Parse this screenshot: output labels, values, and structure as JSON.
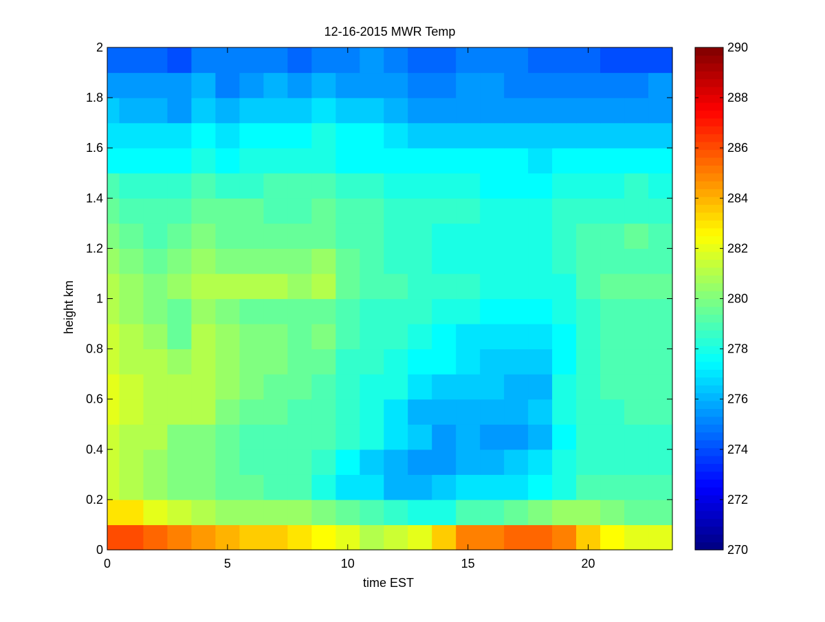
{
  "chart_data": {
    "type": "heatmap",
    "title": "12-16-2015 MWR Temp",
    "xlabel": "time EST",
    "ylabel": "height km",
    "xlim": [
      0,
      23.5
    ],
    "ylim": [
      0,
      2
    ],
    "x_ticks": [
      0,
      5,
      10,
      15,
      20
    ],
    "y_ticks": [
      0,
      0.2,
      0.4,
      0.6,
      0.8,
      1,
      1.2,
      1.4,
      1.6,
      1.8,
      2
    ],
    "colorbar": {
      "min": 270,
      "max": 290,
      "ticks": [
        270,
        272,
        274,
        276,
        278,
        280,
        282,
        284,
        286,
        288,
        290
      ],
      "colormap": "jet"
    },
    "x": [
      0.5,
      1.5,
      2.5,
      3.5,
      4.5,
      5.5,
      6.5,
      7.5,
      8.5,
      9.5,
      10.5,
      11.5,
      12.5,
      13.5,
      14.5,
      15.5,
      16.5,
      17.5,
      18.5,
      19.5,
      20.5,
      21.5,
      22.5,
      23.5
    ],
    "y": [
      0,
      0.1,
      0.2,
      0.3,
      0.4,
      0.5,
      0.6,
      0.7,
      0.8,
      0.9,
      1.0,
      1.1,
      1.2,
      1.3,
      1.4,
      1.5,
      1.6,
      1.7,
      1.8,
      1.9,
      2.0
    ],
    "z": [
      [
        286,
        286,
        285.5,
        285,
        284.5,
        284,
        283.5,
        283.5,
        283,
        282.5,
        282,
        281,
        281.5,
        282,
        283.5,
        285,
        285,
        285.5,
        285.5,
        285,
        283.5,
        282.5,
        282,
        282
      ],
      [
        283,
        283,
        282,
        281.5,
        281,
        280.5,
        280.5,
        280.5,
        280.5,
        280,
        279.5,
        279,
        278.5,
        278,
        278,
        279,
        279,
        279.5,
        280,
        280.5,
        280.5,
        280,
        279.5,
        279.5
      ],
      [
        281.5,
        281,
        280.5,
        280,
        280,
        279.5,
        279.5,
        279,
        279,
        278,
        277,
        277,
        276,
        276,
        276.5,
        277,
        277,
        277,
        277.5,
        278,
        279,
        279,
        279,
        279
      ],
      [
        281.5,
        281,
        280.5,
        280,
        280,
        279.5,
        279,
        279,
        279,
        278.5,
        277.5,
        276.5,
        276,
        275.5,
        275.5,
        276,
        276,
        276.5,
        277,
        278,
        278.5,
        278.5,
        278.5,
        278.5
      ],
      [
        281.5,
        281,
        281,
        280,
        280,
        279.5,
        279,
        279,
        279,
        279,
        278.5,
        278,
        277,
        276.5,
        275.5,
        276,
        275.5,
        275.5,
        276,
        277.5,
        278.5,
        278.5,
        278.5,
        278.5
      ],
      [
        282,
        281.5,
        281,
        281,
        281,
        280,
        279.5,
        279.5,
        279,
        279,
        278.5,
        278,
        277,
        276,
        276,
        276,
        276,
        276,
        276.5,
        278,
        278.5,
        278.5,
        279,
        279
      ],
      [
        282,
        281.5,
        281,
        281,
        281,
        280.5,
        280,
        279.5,
        279.5,
        279,
        278.5,
        278,
        278,
        277,
        276.5,
        276.5,
        276.5,
        276,
        276,
        278,
        278.5,
        279,
        279,
        279
      ],
      [
        281.5,
        281,
        281,
        280.5,
        281,
        280.5,
        280,
        280,
        279.5,
        279.5,
        278.5,
        278.5,
        278,
        277.5,
        277.5,
        277,
        276.5,
        276.5,
        276.5,
        277.5,
        278.5,
        279,
        279,
        279
      ],
      [
        281.5,
        281,
        280.5,
        279.5,
        281,
        280.5,
        280,
        280,
        279.5,
        280,
        279,
        278.5,
        278.5,
        278,
        277.5,
        277,
        277,
        277,
        277,
        277.5,
        278.5,
        279,
        279,
        279
      ],
      [
        281,
        280.5,
        280,
        279.5,
        280.5,
        280,
        279.5,
        279.5,
        279.5,
        279.5,
        279,
        278.5,
        278.5,
        278.5,
        278,
        278,
        277.5,
        277.5,
        277.5,
        278,
        278.5,
        279,
        279,
        279
      ],
      [
        281,
        280.5,
        280,
        280.5,
        281,
        281,
        281,
        281,
        280.5,
        281,
        279.5,
        279,
        279,
        278.5,
        278.5,
        278.5,
        278,
        278,
        278,
        278,
        279,
        279.5,
        279.5,
        279.5
      ],
      [
        280.5,
        280,
        279.5,
        280,
        280.5,
        280,
        280,
        280,
        280,
        280.5,
        279.5,
        279,
        278.5,
        278.5,
        278,
        278,
        278,
        278,
        278,
        278.5,
        279,
        279,
        279,
        279
      ],
      [
        280,
        279.5,
        279,
        279.5,
        280,
        279.5,
        279.5,
        279.5,
        279.5,
        279.5,
        279,
        279,
        278.5,
        278.5,
        278,
        278,
        278,
        278,
        278,
        278.5,
        279,
        279,
        279.5,
        279
      ],
      [
        279.5,
        279,
        279,
        279,
        279.5,
        279.5,
        279.5,
        279,
        279,
        279.5,
        279,
        279,
        278.5,
        278.5,
        278.5,
        278.5,
        278,
        278,
        278,
        278.5,
        278.5,
        278.5,
        278.5,
        278.5
      ],
      [
        279,
        278.5,
        278.5,
        278.5,
        279,
        278.5,
        278.5,
        279,
        279,
        279,
        278.5,
        278.5,
        278,
        278,
        278,
        278,
        277.5,
        277.5,
        277.5,
        278,
        278,
        278,
        278.5,
        278
      ],
      [
        277.5,
        277.5,
        277.5,
        277.5,
        278,
        277.5,
        278,
        278,
        278,
        278,
        277.5,
        277.5,
        277.5,
        277.5,
        277.5,
        277.5,
        277.5,
        277.5,
        277,
        277.5,
        277.5,
        277.5,
        277.5,
        277.5
      ],
      [
        277,
        277,
        277,
        277,
        277.5,
        277,
        277.5,
        277.5,
        277.5,
        278,
        277.5,
        277.5,
        277,
        276.5,
        276.5,
        276.5,
        276.5,
        276.5,
        276.5,
        276.5,
        276.5,
        276.5,
        276.5,
        276.5
      ],
      [
        276.5,
        276,
        276,
        275.5,
        276.5,
        276,
        276.5,
        276.5,
        276.5,
        277,
        276.5,
        276.5,
        276,
        275.5,
        275.5,
        275.5,
        275.5,
        275.5,
        275.5,
        275.5,
        275.5,
        275.5,
        275.5,
        275.5
      ],
      [
        275.5,
        275.5,
        275.5,
        275.5,
        276,
        275,
        275.5,
        276,
        275.5,
        276,
        275.5,
        275.5,
        275.5,
        275,
        275,
        275.5,
        275.5,
        275,
        275,
        275,
        275,
        275,
        275,
        275.5
      ],
      [
        274.5,
        274.5,
        274.5,
        274,
        275,
        275,
        275,
        275,
        274.5,
        275,
        275,
        275.5,
        275,
        274.5,
        274.5,
        275,
        275,
        275,
        274.5,
        274.5,
        274.5,
        274,
        274,
        274
      ]
    ]
  }
}
